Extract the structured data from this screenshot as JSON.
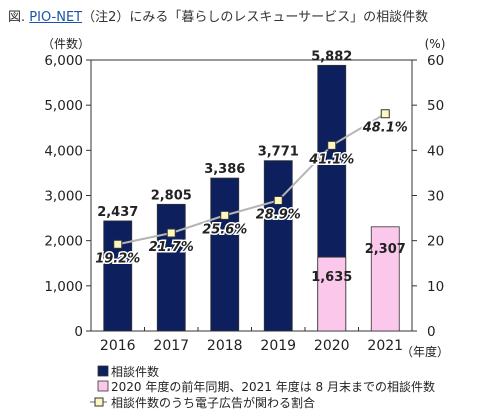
{
  "page": {
    "title_prefix": "図.",
    "title_link": "PIO-NET",
    "title_suffix": "（注2）にみる「暮らしのレスキューサービス」の相談件数"
  },
  "chart_data": {
    "type": "bar+line",
    "categories": [
      "2016",
      "2017",
      "2018",
      "2019",
      "2020",
      "2021"
    ],
    "series": [
      {
        "name": "相談件数",
        "kind": "bar",
        "color": "#0d1f5c",
        "values": [
          2437,
          2805,
          3386,
          3771,
          5882,
          null
        ],
        "labels": [
          "2,437",
          "2,805",
          "3,386",
          "3,771",
          "5,882",
          ""
        ]
      },
      {
        "name": "2020 年度の前年同期、2021 年度は 8 月末までの相談件数",
        "kind": "bar",
        "color": "#fbc8ec",
        "values": [
          null,
          null,
          null,
          null,
          1635,
          2307
        ],
        "labels": [
          "",
          "",
          "",
          "",
          "1,635",
          "2,307"
        ]
      },
      {
        "name": "相談件数のうち電子広告が関わる割合",
        "kind": "line",
        "axis": "right",
        "line_color": "#b5b5b5",
        "marker_color": "#fff7c2",
        "marker_edge": "#333333",
        "values": [
          19.2,
          21.7,
          25.6,
          28.9,
          41.1,
          48.1
        ],
        "labels": [
          "19.2%",
          "21.7%",
          "25.6%",
          "28.9%",
          "41.1%",
          "48.1%"
        ]
      }
    ],
    "y_left": {
      "unit": "（件数）",
      "ylim": [
        0,
        6000
      ],
      "ticks": [
        "0",
        "1,000",
        "2,000",
        "3,000",
        "4,000",
        "5,000",
        "6,000"
      ]
    },
    "y_right": {
      "unit": "(%)",
      "ylim": [
        0,
        60
      ],
      "ticks": [
        "0",
        "10",
        "20",
        "30",
        "40",
        "50",
        "60"
      ]
    },
    "x_unit": "（年度）",
    "legend_position": "bottom-left",
    "grid": false
  }
}
